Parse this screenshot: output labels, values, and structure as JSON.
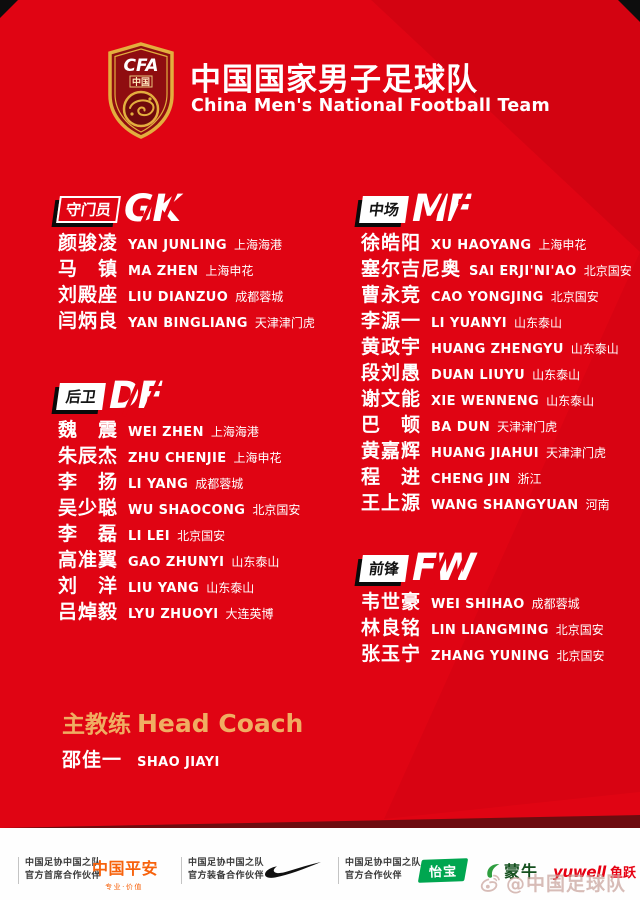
{
  "header": {
    "logo": {
      "acronym": "CFA",
      "country": "中国"
    },
    "title": "中国国家男子足球队",
    "subtitle": "China Men's National Football Team"
  },
  "sections": [
    {
      "id": "gk",
      "label_cn": "守门员",
      "label_en": "GK",
      "box_style": "outline",
      "players": [
        {
          "name": "颜骏凌",
          "latin": "YAN JUNLING",
          "club": "上海海港"
        },
        {
          "name": "马　镇",
          "latin": "MA ZHEN",
          "club": "上海申花"
        },
        {
          "name": "刘殿座",
          "latin": "LIU DIANZUO",
          "club": "成都蓉城"
        },
        {
          "name": "闫炳良",
          "latin": "YAN BINGLIANG",
          "club": "天津津门虎"
        }
      ]
    },
    {
      "id": "df",
      "label_cn": "后卫",
      "label_en": "DF",
      "box_style": "solid",
      "players": [
        {
          "name": "魏　震",
          "latin": "WEI ZHEN",
          "club": "上海海港"
        },
        {
          "name": "朱辰杰",
          "latin": "ZHU CHENJIE",
          "club": "上海申花"
        },
        {
          "name": "李　扬",
          "latin": "LI YANG",
          "club": "成都蓉城"
        },
        {
          "name": "吴少聪",
          "latin": "WU SHAOCONG",
          "club": "北京国安"
        },
        {
          "name": "李　磊",
          "latin": "LI LEI",
          "club": "北京国安"
        },
        {
          "name": "高准翼",
          "latin": "GAO ZHUNYI",
          "club": "山东泰山"
        },
        {
          "name": "刘　洋",
          "latin": "LIU YANG",
          "club": "山东泰山"
        },
        {
          "name": "吕焯毅",
          "latin": "LYU ZHUOYI",
          "club": "大连英博"
        }
      ]
    },
    {
      "id": "mf",
      "label_cn": "中场",
      "label_en": "MF",
      "box_style": "solid",
      "players": [
        {
          "name": "徐皓阳",
          "latin": "XU HAOYANG",
          "club": "上海申花"
        },
        {
          "name": "塞尔吉尼奥",
          "latin": "SAI ERJI'NI'AO",
          "club": "北京国安"
        },
        {
          "name": "曹永竞",
          "latin": "CAO YONGJING",
          "club": "北京国安"
        },
        {
          "name": "李源一",
          "latin": "LI YUANYI",
          "club": "山东泰山"
        },
        {
          "name": "黄政宇",
          "latin": "HUANG ZHENGYU",
          "club": "山东泰山"
        },
        {
          "name": "段刘愚",
          "latin": "DUAN LIUYU",
          "club": "山东泰山"
        },
        {
          "name": "谢文能",
          "latin": "XIE WENNENG",
          "club": "山东泰山"
        },
        {
          "name": "巴　顿",
          "latin": "BA DUN",
          "club": "天津津门虎"
        },
        {
          "name": "黄嘉辉",
          "latin": "HUANG JIAHUI",
          "club": "天津津门虎"
        },
        {
          "name": "程　进",
          "latin": "CHENG JIN",
          "club": "浙江"
        },
        {
          "name": "王上源",
          "latin": "WANG SHANGYUAN",
          "club": "河南"
        }
      ]
    },
    {
      "id": "fw",
      "label_cn": "前锋",
      "label_en": "FW",
      "box_style": "solid",
      "players": [
        {
          "name": "韦世豪",
          "latin": "WEI SHIHAO",
          "club": "成都蓉城"
        },
        {
          "name": "林良铭",
          "latin": "LIN LIANGMING",
          "club": "北京国安"
        },
        {
          "name": "张玉宁",
          "latin": "ZHANG YUNING",
          "club": "北京国安"
        }
      ]
    }
  ],
  "coach": {
    "label_cn": "主教练",
    "label_en": "Head Coach",
    "name_cn": "邵佳一",
    "name_latin": "SHAO JIAYI"
  },
  "footer": {
    "partners": [
      {
        "line1": "中国足协中国之队",
        "line2": "官方首席合作伙伴"
      },
      {
        "line1": "中国足协中国之队",
        "line2": "官方装备合作伙伴"
      },
      {
        "line1": "中国足协中国之队",
        "line2": "官方合作伙伴"
      }
    ],
    "pingan": {
      "name": "中国平安",
      "slogan": "专业·价值"
    },
    "cestbon": {
      "name": "怡宝"
    },
    "mengniu": {
      "name": "蒙牛"
    },
    "yuwell": {
      "name": "yuwell",
      "name_cn": "鱼跃"
    },
    "watermark": "@中国足球队"
  },
  "colors": {
    "background": "#e00413",
    "background_dark_band": "#6d0c10",
    "corner_black": "#0d0d0d",
    "gold_coach": "#f0ad62",
    "crest_gold": "#e3ae3e",
    "crest_red": "#8f0d10",
    "footer_bg": "#fefefe",
    "pingan_orange": "#f7620c",
    "cestbon_green": "#00a650",
    "mengniu_green": "#14501e",
    "yuwell_red": "#e60012"
  }
}
